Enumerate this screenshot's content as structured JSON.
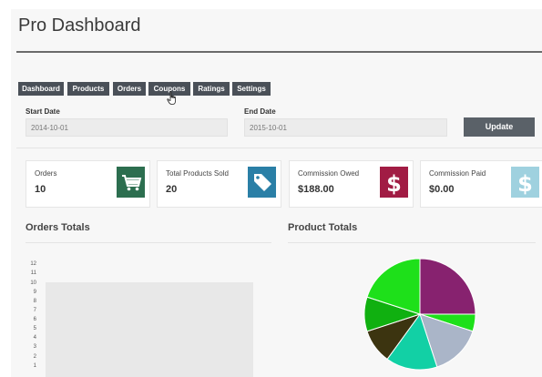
{
  "app": {
    "title": "Pro Dashboard"
  },
  "nav": {
    "tabs": [
      {
        "label": "Dashboard"
      },
      {
        "label": "Products"
      },
      {
        "label": "Orders"
      },
      {
        "label": "Coupons"
      },
      {
        "label": "Ratings"
      },
      {
        "label": "Settings"
      }
    ]
  },
  "filters": {
    "start_date_label": "Start Date",
    "start_date_value": "2014-10-01",
    "end_date_label": "End Date",
    "end_date_value": "2015-10-01",
    "update_label": "Update"
  },
  "stats": [
    {
      "label": "Orders",
      "value": "10",
      "icon": "shopping-cart-icon",
      "color": "#2c6e4f"
    },
    {
      "label": "Total Products Sold",
      "value": "20",
      "icon": "tag-icon",
      "color": "#2a7fa6"
    },
    {
      "label": "Commission Owed",
      "value": "$188.00",
      "icon": "dollar-icon",
      "color": "#a11c44"
    },
    {
      "label": "Commission Paid",
      "value": "$0.00",
      "icon": "dollar-icon",
      "color": "#9fd1df"
    }
  ],
  "orders_chart": {
    "title": "Orders Totals"
  },
  "products_chart": {
    "title": "Product Totals"
  },
  "chart_data": [
    {
      "type": "bar",
      "title": "Orders Totals",
      "y_ticks": [
        "12",
        "11",
        "10",
        "9",
        "8",
        "7",
        "6",
        "5",
        "4",
        "3",
        "2",
        "1"
      ],
      "ylim": [
        0,
        12
      ],
      "values": [
        10
      ],
      "color": "#e8e8e8"
    },
    {
      "type": "pie",
      "title": "Product Totals",
      "values": [
        25,
        5,
        15,
        15,
        10,
        10,
        20
      ],
      "colors": [
        "#87226f",
        "#1ee01a",
        "#aab5c8",
        "#12d0a5",
        "#3c3410",
        "#10b010",
        "#1ee01a"
      ]
    }
  ]
}
